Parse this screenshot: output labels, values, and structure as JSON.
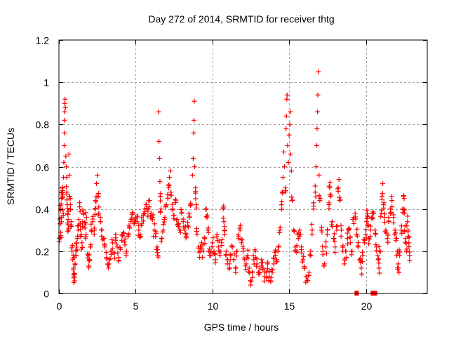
{
  "chart_data": {
    "type": "scatter",
    "title": "Day 272 of 2014, SRMTID for receiver thtg",
    "xlabel": "GPS time / hours",
    "ylabel": "SRMTID / TECUs",
    "xlim": [
      0,
      24
    ],
    "ylim": [
      0,
      1.2
    ],
    "xticks": [
      0,
      5,
      10,
      15,
      20
    ],
    "xtick_labels": [
      "0",
      "5",
      "10",
      "15",
      "20"
    ],
    "yticks": [
      0,
      0.2,
      0.4,
      0.6,
      0.8,
      1,
      1.2
    ],
    "ytick_labels": [
      "0",
      "0.2",
      "0.4",
      "0.6",
      "0.8",
      "1",
      "1.2"
    ],
    "grid": true,
    "marker": "plus",
    "color": "#ff0000",
    "series": [
      {
        "name": "SRMTID",
        "points": [
          [
            0.05,
            0.26
          ],
          [
            0.08,
            0.33
          ],
          [
            0.1,
            0.4
          ],
          [
            0.12,
            0.29
          ],
          [
            0.15,
            0.36
          ],
          [
            0.18,
            0.45
          ],
          [
            0.2,
            0.48
          ],
          [
            0.22,
            0.5
          ],
          [
            0.25,
            0.47
          ],
          [
            0.28,
            0.38
          ],
          [
            0.3,
            0.55
          ],
          [
            0.32,
            0.62
          ],
          [
            0.34,
            0.7
          ],
          [
            0.35,
            0.76
          ],
          [
            0.36,
            0.82
          ],
          [
            0.37,
            0.86
          ],
          [
            0.38,
            0.9
          ],
          [
            0.4,
            0.92
          ],
          [
            0.42,
            0.88
          ],
          [
            0.45,
            0.65
          ],
          [
            0.48,
            0.6
          ],
          [
            0.5,
            0.55
          ],
          [
            0.52,
            0.48
          ],
          [
            0.55,
            0.42
          ],
          [
            0.58,
            0.38
          ],
          [
            0.6,
            0.35
          ],
          [
            0.62,
            0.3
          ],
          [
            0.65,
            0.66
          ],
          [
            0.68,
            0.56
          ],
          [
            0.7,
            0.46
          ],
          [
            0.75,
            0.4
          ],
          [
            0.8,
            0.34
          ],
          [
            0.85,
            0.2
          ],
          [
            0.9,
            0.16
          ],
          [
            0.95,
            0.12
          ],
          [
            1.0,
            0.08
          ],
          [
            1.02,
            0.06
          ],
          [
            1.05,
            0.14
          ],
          [
            1.1,
            0.18
          ],
          [
            1.15,
            0.22
          ],
          [
            1.2,
            0.26
          ],
          [
            1.25,
            0.3
          ],
          [
            1.3,
            0.35
          ],
          [
            1.35,
            0.41
          ],
          [
            1.4,
            0.33
          ],
          [
            1.45,
            0.28
          ],
          [
            1.5,
            0.24
          ],
          [
            1.55,
            0.34
          ],
          [
            1.6,
            0.38
          ],
          [
            1.7,
            0.31
          ],
          [
            1.75,
            0.27
          ],
          [
            1.8,
            0.36
          ],
          [
            1.9,
            0.18
          ],
          [
            1.95,
            0.13
          ],
          [
            2.0,
            0.16
          ],
          [
            2.05,
            0.22
          ],
          [
            2.1,
            0.3
          ],
          [
            2.2,
            0.34
          ],
          [
            2.3,
            0.28
          ],
          [
            2.35,
            0.4
          ],
          [
            2.4,
            0.44
          ],
          [
            2.45,
            0.52
          ],
          [
            2.5,
            0.56
          ],
          [
            2.55,
            0.46
          ],
          [
            2.6,
            0.38
          ],
          [
            2.7,
            0.36
          ],
          [
            2.8,
            0.3
          ],
          [
            2.9,
            0.26
          ],
          [
            3.0,
            0.22
          ],
          [
            3.1,
            0.17
          ],
          [
            3.2,
            0.14
          ],
          [
            3.3,
            0.16
          ],
          [
            3.4,
            0.2
          ],
          [
            3.5,
            0.24
          ],
          [
            3.6,
            0.19
          ],
          [
            3.7,
            0.28
          ],
          [
            3.8,
            0.22
          ],
          [
            3.9,
            0.17
          ],
          [
            4.0,
            0.21
          ],
          [
            4.1,
            0.25
          ],
          [
            4.2,
            0.29
          ],
          [
            4.3,
            0.23
          ],
          [
            4.4,
            0.2
          ],
          [
            4.5,
            0.27
          ],
          [
            4.6,
            0.31
          ],
          [
            4.7,
            0.35
          ],
          [
            4.8,
            0.38
          ],
          [
            4.9,
            0.33
          ],
          [
            5.0,
            0.36
          ],
          [
            5.1,
            0.34
          ],
          [
            5.2,
            0.3
          ],
          [
            5.3,
            0.28
          ],
          [
            5.4,
            0.33
          ],
          [
            5.5,
            0.37
          ],
          [
            5.6,
            0.4
          ],
          [
            5.7,
            0.42
          ],
          [
            5.8,
            0.39
          ],
          [
            5.9,
            0.44
          ],
          [
            6.0,
            0.38
          ],
          [
            6.1,
            0.35
          ],
          [
            6.2,
            0.3
          ],
          [
            6.3,
            0.27
          ],
          [
            6.4,
            0.22
          ],
          [
            6.45,
            0.18
          ],
          [
            6.5,
            0.86
          ],
          [
            6.52,
            0.72
          ],
          [
            6.55,
            0.64
          ],
          [
            6.58,
            0.53
          ],
          [
            6.6,
            0.46
          ],
          [
            6.65,
            0.4
          ],
          [
            6.7,
            0.26
          ],
          [
            6.8,
            0.3
          ],
          [
            6.9,
            0.36
          ],
          [
            7.0,
            0.42
          ],
          [
            7.1,
            0.45
          ],
          [
            7.15,
            0.5
          ],
          [
            7.2,
            0.55
          ],
          [
            7.25,
            0.58
          ],
          [
            7.3,
            0.48
          ],
          [
            7.4,
            0.4
          ],
          [
            7.5,
            0.37
          ],
          [
            7.6,
            0.43
          ],
          [
            7.7,
            0.35
          ],
          [
            7.8,
            0.33
          ],
          [
            7.9,
            0.3
          ],
          [
            8.0,
            0.38
          ],
          [
            8.1,
            0.34
          ],
          [
            8.2,
            0.3
          ],
          [
            8.3,
            0.27
          ],
          [
            8.4,
            0.32
          ],
          [
            8.5,
            0.36
          ],
          [
            8.6,
            0.42
          ],
          [
            8.7,
            0.56
          ],
          [
            8.75,
            0.64
          ],
          [
            8.78,
            0.76
          ],
          [
            8.8,
            0.82
          ],
          [
            8.82,
            0.91
          ],
          [
            8.85,
            0.6
          ],
          [
            8.9,
            0.5
          ],
          [
            8.95,
            0.42
          ],
          [
            9.0,
            0.28
          ],
          [
            9.1,
            0.22
          ],
          [
            9.2,
            0.2
          ],
          [
            9.3,
            0.24
          ],
          [
            9.4,
            0.2
          ],
          [
            9.5,
            0.26
          ],
          [
            9.6,
            0.4
          ],
          [
            9.65,
            0.36
          ],
          [
            9.7,
            0.3
          ],
          [
            9.8,
            0.21
          ],
          [
            9.9,
            0.18
          ],
          [
            10.0,
            0.24
          ],
          [
            10.1,
            0.2
          ],
          [
            10.2,
            0.16
          ],
          [
            10.3,
            0.28
          ],
          [
            10.4,
            0.22
          ],
          [
            10.5,
            0.18
          ],
          [
            10.6,
            0.24
          ],
          [
            10.7,
            0.4
          ],
          [
            10.75,
            0.34
          ],
          [
            10.8,
            0.3
          ],
          [
            10.9,
            0.2
          ],
          [
            11.0,
            0.16
          ],
          [
            11.1,
            0.14
          ],
          [
            11.2,
            0.18
          ],
          [
            11.3,
            0.22
          ],
          [
            11.4,
            0.16
          ],
          [
            11.5,
            0.12
          ],
          [
            11.6,
            0.2
          ],
          [
            11.7,
            0.26
          ],
          [
            11.8,
            0.3
          ],
          [
            11.9,
            0.24
          ],
          [
            12.0,
            0.2
          ],
          [
            12.1,
            0.16
          ],
          [
            12.2,
            0.14
          ],
          [
            12.3,
            0.18
          ],
          [
            12.4,
            0.12
          ],
          [
            12.5,
            0.04
          ],
          [
            12.6,
            0.1
          ],
          [
            12.7,
            0.16
          ],
          [
            12.8,
            0.2
          ],
          [
            12.9,
            0.14
          ],
          [
            13.0,
            0.1
          ],
          [
            13.1,
            0.12
          ],
          [
            13.2,
            0.16
          ],
          [
            13.3,
            0.12
          ],
          [
            13.4,
            0.08
          ],
          [
            13.5,
            0.1
          ],
          [
            13.6,
            0.14
          ],
          [
            13.7,
            0.08
          ],
          [
            13.8,
            0.06
          ],
          [
            13.9,
            0.1
          ],
          [
            14.0,
            0.14
          ],
          [
            14.1,
            0.18
          ],
          [
            14.2,
            0.16
          ],
          [
            14.3,
            0.22
          ],
          [
            14.4,
            0.3
          ],
          [
            14.5,
            0.42
          ],
          [
            14.55,
            0.48
          ],
          [
            14.6,
            0.55
          ],
          [
            14.65,
            0.67
          ],
          [
            14.7,
            0.6
          ],
          [
            14.75,
            0.5
          ],
          [
            14.8,
            0.78
          ],
          [
            14.82,
            0.84
          ],
          [
            14.85,
            0.92
          ],
          [
            14.87,
            0.94
          ],
          [
            14.9,
            0.7
          ],
          [
            14.95,
            0.62
          ],
          [
            15.0,
            0.75
          ],
          [
            15.05,
            0.8
          ],
          [
            15.08,
            0.86
          ],
          [
            15.1,
            0.66
          ],
          [
            15.15,
            0.58
          ],
          [
            15.2,
            0.44
          ],
          [
            15.3,
            0.3
          ],
          [
            15.4,
            0.22
          ],
          [
            15.5,
            0.2
          ],
          [
            15.6,
            0.26
          ],
          [
            15.7,
            0.3
          ],
          [
            15.8,
            0.22
          ],
          [
            15.9,
            0.16
          ],
          [
            16.0,
            0.12
          ],
          [
            16.1,
            0.08
          ],
          [
            16.2,
            0.06
          ],
          [
            16.3,
            0.1
          ],
          [
            16.4,
            0.2
          ],
          [
            16.5,
            0.3
          ],
          [
            16.6,
            0.4
          ],
          [
            16.7,
            0.48
          ],
          [
            16.75,
            0.6
          ],
          [
            16.8,
            0.7
          ],
          [
            16.82,
            0.78
          ],
          [
            16.85,
            0.86
          ],
          [
            16.87,
            0.94
          ],
          [
            16.9,
            1.05
          ],
          [
            16.95,
            0.56
          ],
          [
            17.0,
            0.44
          ],
          [
            17.1,
            0.3
          ],
          [
            17.2,
            0.2
          ],
          [
            17.3,
            0.14
          ],
          [
            17.4,
            0.22
          ],
          [
            17.5,
            0.3
          ],
          [
            17.6,
            0.42
          ],
          [
            17.65,
            0.5
          ],
          [
            17.7,
            0.46
          ],
          [
            17.8,
            0.34
          ],
          [
            17.9,
            0.26
          ],
          [
            18.0,
            0.22
          ],
          [
            18.1,
            0.3
          ],
          [
            18.2,
            0.5
          ],
          [
            18.25,
            0.54
          ],
          [
            18.3,
            0.44
          ],
          [
            18.4,
            0.3
          ],
          [
            18.5,
            0.2
          ],
          [
            18.6,
            0.14
          ],
          [
            18.7,
            0.2
          ],
          [
            18.8,
            0.26
          ],
          [
            18.9,
            0.3
          ],
          [
            19.0,
            0.24
          ],
          [
            19.1,
            0.2
          ],
          [
            19.2,
            0.36
          ],
          [
            19.3,
            0.38
          ],
          [
            19.4,
            0.28
          ],
          [
            19.5,
            0.22
          ],
          [
            19.6,
            0.16
          ],
          [
            19.7,
            0.12
          ],
          [
            19.8,
            0.18
          ],
          [
            19.9,
            0.24
          ],
          [
            20.0,
            0.28
          ],
          [
            20.05,
            0.34
          ],
          [
            20.1,
            0.38
          ],
          [
            20.15,
            0.32
          ],
          [
            20.2,
            0.26
          ],
          [
            20.3,
            0.3
          ],
          [
            20.4,
            0.36
          ],
          [
            20.5,
            0.38
          ],
          [
            20.6,
            0.3
          ],
          [
            20.7,
            0.22
          ],
          [
            20.8,
            0.16
          ],
          [
            20.85,
            0.12
          ],
          [
            20.9,
            0.2
          ],
          [
            21.0,
            0.38
          ],
          [
            21.05,
            0.46
          ],
          [
            21.1,
            0.52
          ],
          [
            21.15,
            0.42
          ],
          [
            21.2,
            0.36
          ],
          [
            21.3,
            0.3
          ],
          [
            21.4,
            0.26
          ],
          [
            21.5,
            0.34
          ],
          [
            21.6,
            0.4
          ],
          [
            21.7,
            0.44
          ],
          [
            21.8,
            0.36
          ],
          [
            21.9,
            0.3
          ],
          [
            22.0,
            0.26
          ],
          [
            22.05,
            0.2
          ],
          [
            22.1,
            0.14
          ],
          [
            22.15,
            0.1
          ],
          [
            22.2,
            0.18
          ],
          [
            22.3,
            0.3
          ],
          [
            22.4,
            0.4
          ],
          [
            22.45,
            0.46
          ],
          [
            22.5,
            0.38
          ],
          [
            22.55,
            0.32
          ],
          [
            22.6,
            0.26
          ],
          [
            22.65,
            0.2
          ],
          [
            22.7,
            0.34
          ],
          [
            22.75,
            0.3
          ],
          [
            22.8,
            0.24
          ],
          [
            22.85,
            0.18
          ]
        ]
      }
    ],
    "zero_markers": [
      19.4,
      20.45,
      20.6
    ]
  }
}
